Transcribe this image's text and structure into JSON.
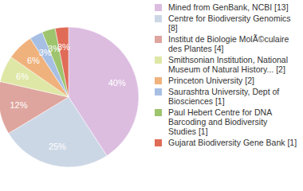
{
  "chart_data": {
    "type": "pie",
    "categories": [
      "Mined from GenBank, NCBI [13]",
      "Centre for Biodiversity Genomics [8]",
      "Institut de Biologie MolÃ©culaire des Plantes [4]",
      "Smithsonian Institution, National Museum of Natural History... [2]",
      "Princeton University [2]",
      "Saurashtra University, Dept of Biosciences [1]",
      "Paul Hebert Centre for DNA Barcoding and Biodiversity Studies [1]",
      "Gujarat Biodiversity Gene Bank [1]"
    ],
    "values": [
      40,
      25,
      12,
      6,
      6,
      3,
      3,
      3
    ],
    "value_labels": [
      "40%",
      "25%",
      "12%",
      "6%",
      "6%",
      "3%",
      "3%",
      "3%"
    ],
    "colors": [
      "#dcbde0",
      "#ccd7e5",
      "#dea59e",
      "#dfe7a6",
      "#f0b27c",
      "#a8bfe4",
      "#9ec46e",
      "#e06b57"
    ],
    "data_labels": true,
    "legend": "right"
  }
}
